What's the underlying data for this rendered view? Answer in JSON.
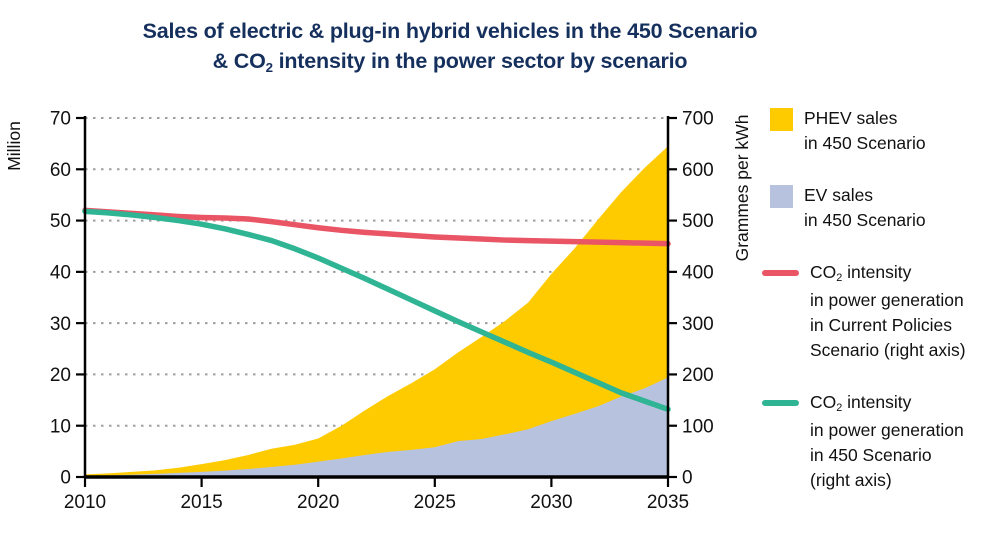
{
  "title": {
    "line1": "Sales of electric & plug-in hybrid vehicles in the 450 Scenario",
    "line2_pre": "& CO",
    "line2_sub": "2",
    "line2_post": " intensity in the power sector by scenario",
    "color": "#16305E"
  },
  "legend": {
    "items": [
      {
        "swatch": "square",
        "color": "#FECB00",
        "line1": "PHEV sales",
        "lines_rest": [
          "in 450 Scenario"
        ]
      },
      {
        "swatch": "square",
        "color": "#B7C2DF",
        "line1": "EV sales",
        "lines_rest": [
          "in 450 Scenario"
        ]
      },
      {
        "swatch": "line",
        "color": "#EA5565",
        "line1_pre": "CO",
        "line1_sub": "2",
        "line1_post": " intensity",
        "lines_rest": [
          "in power generation",
          "in Current Policies",
          "Scenario (right axis)"
        ]
      },
      {
        "swatch": "line",
        "color": "#2FB494",
        "line1_pre": "CO",
        "line1_sub": "2",
        "line1_post": " intensity",
        "lines_rest": [
          "in power generation",
          "in 450 Scenario",
          "(right axis)"
        ]
      }
    ]
  },
  "chart_data": {
    "type": "combo-stacked-area-and-lines",
    "x": [
      2010,
      2011,
      2012,
      2013,
      2014,
      2015,
      2016,
      2017,
      2018,
      2019,
      2020,
      2021,
      2022,
      2023,
      2024,
      2025,
      2026,
      2027,
      2028,
      2029,
      2030,
      2031,
      2032,
      2033,
      2034,
      2035
    ],
    "series": [
      {
        "name": "EV sales in 450 Scenario",
        "type": "area",
        "axis": "left",
        "color": "#B7C2DF",
        "values": [
          0.2,
          0.3,
          0.45,
          0.6,
          0.8,
          1.0,
          1.25,
          1.55,
          1.95,
          2.4,
          3.0,
          3.6,
          4.3,
          4.9,
          5.3,
          5.8,
          7.0,
          7.4,
          8.3,
          9.3,
          10.9,
          12.3,
          13.8,
          15.7,
          17.3,
          19.4
        ]
      },
      {
        "name": "PHEV sales in 450 Scenario",
        "type": "area-stacked-on-previous",
        "axis": "left",
        "color": "#FECB00",
        "values": [
          0.3,
          0.4,
          0.55,
          0.7,
          1.0,
          1.5,
          2.05,
          2.75,
          3.55,
          3.9,
          4.5,
          6.4,
          8.7,
          10.9,
          13.0,
          15.2,
          17.3,
          19.9,
          22.1,
          24.7,
          28.7,
          32.3,
          36.4,
          39.9,
          43.0,
          45.1
        ]
      },
      {
        "name": "CO2 intensity in power generation in Current Policies Scenario",
        "type": "line",
        "axis": "right",
        "color": "#EA5565",
        "values": [
          520,
          517,
          514,
          511,
          508,
          506,
          505,
          503,
          498,
          492,
          486,
          481,
          477,
          474,
          471,
          468,
          466,
          464,
          462,
          461,
          460,
          459,
          458,
          457,
          456,
          455
        ]
      },
      {
        "name": "CO2 intensity in power generation in 450 Scenario",
        "type": "line",
        "axis": "right",
        "color": "#2FB494",
        "values": [
          518,
          515,
          511,
          506,
          500,
          493,
          484,
          473,
          461,
          445,
          427,
          407,
          387,
          366,
          345,
          324,
          303,
          283,
          263,
          243,
          224,
          204,
          184,
          164,
          148,
          132
        ]
      }
    ],
    "left_axis": {
      "label": "Million",
      "min": 0,
      "max": 70,
      "ticks": [
        0,
        10,
        20,
        30,
        40,
        50,
        60,
        70
      ]
    },
    "right_axis": {
      "label": "Grammes  per kWh",
      "min": 0,
      "max": 700,
      "ticks": [
        0,
        100,
        200,
        300,
        400,
        500,
        600,
        700
      ]
    },
    "x_ticks": [
      2010,
      2015,
      2020,
      2025,
      2030,
      2035
    ],
    "grid": "horizontal dotted",
    "legend_position": "right"
  }
}
